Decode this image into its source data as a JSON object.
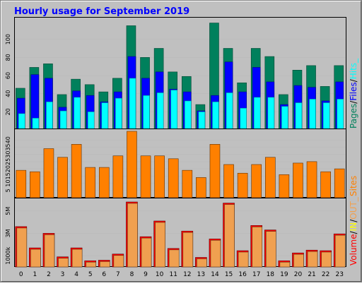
{
  "title": "Hourly usage for September 2019",
  "colors": {
    "background": "#c0c0c0",
    "plot_bg": "#ffffff",
    "title": "#0000ff",
    "pages": "#00805c",
    "files": "#0000ff",
    "hits": "#00ffff",
    "sites": "#ff8000",
    "volume": "#ff0000",
    "volume_in": "#ffff00",
    "volume_out": "#f0a050",
    "text": "#000000",
    "grid": "#bcbcbc",
    "border": "#000000"
  },
  "chart_data": [
    {
      "type": "bar",
      "name": "pages-files-hits",
      "label_parts": [
        "Pages",
        "/",
        "Files",
        "/",
        "Hits",
        "_"
      ],
      "categories": [
        "0",
        "1",
        "2",
        "3",
        "4",
        "5",
        "6",
        "7",
        "8",
        "9",
        "10",
        "11",
        "12",
        "13",
        "14",
        "15",
        "16",
        "17",
        "18",
        "19",
        "20",
        "21",
        "22",
        "23"
      ],
      "ylim": [
        0,
        120
      ],
      "yticks": [
        20,
        40,
        60,
        80,
        100
      ],
      "series": [
        {
          "name": "Pages",
          "values": [
            46,
            69,
            73,
            39,
            56,
            50,
            42,
            57,
            115,
            80,
            90,
            64,
            59,
            28,
            118,
            90,
            52,
            90,
            81,
            39,
            66,
            71,
            48,
            71
          ]
        },
        {
          "name": "Files",
          "values": [
            35,
            61,
            57,
            25,
            43,
            38,
            31,
            42,
            81,
            57,
            64,
            45,
            42,
            21,
            38,
            75,
            42,
            69,
            53,
            28,
            49,
            47,
            32,
            53
          ]
        },
        {
          "name": "Hits",
          "values": [
            18,
            13,
            31,
            21,
            36,
            20,
            30,
            35,
            57,
            38,
            41,
            44,
            32,
            20,
            31,
            41,
            24,
            36,
            36,
            26,
            30,
            34,
            30,
            34
          ]
        }
      ]
    },
    {
      "type": "bar",
      "name": "sites",
      "label_parts": [
        "Sites"
      ],
      "categories": [
        "0",
        "1",
        "2",
        "3",
        "4",
        "5",
        "6",
        "7",
        "8",
        "9",
        "10",
        "11",
        "12",
        "13",
        "14",
        "15",
        "16",
        "17",
        "18",
        "19",
        "20",
        "21",
        "22",
        "23"
      ],
      "ylim": [
        0,
        45
      ],
      "yticks": [
        5,
        10,
        15,
        20,
        25,
        30,
        35,
        40
      ],
      "series": [
        {
          "name": "Sites",
          "values": [
            19,
            18,
            34,
            28,
            37,
            21,
            21,
            29,
            46,
            29,
            29,
            27,
            19,
            14,
            37,
            23,
            17,
            23,
            28,
            16,
            24,
            25,
            18,
            20
          ]
        }
      ]
    },
    {
      "type": "bar",
      "name": "volume",
      "label_parts": [
        "Volume",
        "/",
        "IN",
        "/",
        "OUT",
        "_"
      ],
      "categories": [
        "0",
        "1",
        "2",
        "3",
        "4",
        "5",
        "6",
        "7",
        "8",
        "9",
        "10",
        "11",
        "12",
        "13",
        "14",
        "15",
        "16",
        "17",
        "18",
        "19",
        "20",
        "21",
        "22",
        "23"
      ],
      "ylim": [
        0,
        5800
      ],
      "yticks": [
        1000,
        3000,
        5000
      ],
      "ytick_labels": [
        "1000k",
        "3M",
        "5M"
      ],
      "series": [
        {
          "name": "Volume",
          "values": [
            3600,
            1700,
            3000,
            900,
            1700,
            550,
            600,
            1150,
            5800,
            2700,
            4100,
            1650,
            3200,
            850,
            2500,
            5700,
            1450,
            3700,
            3300,
            550,
            1250,
            1500,
            1450,
            2950
          ]
        }
      ]
    }
  ]
}
